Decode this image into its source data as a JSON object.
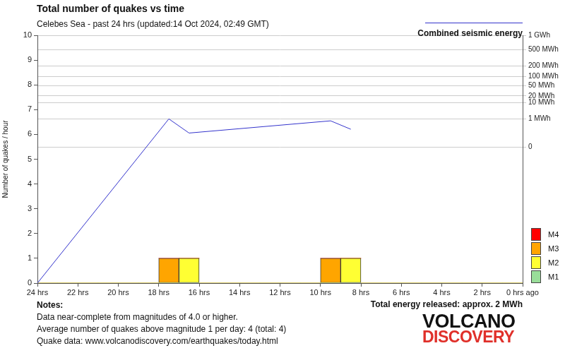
{
  "chart_data": {
    "type": "bar",
    "title": "Total number of quakes vs time",
    "subtitle": "Celebes Sea - past 24 hrs (updated:14 Oct 2024, 02:49 GMT)",
    "y_label": "Number of quakes / hour",
    "x": [
      23.5,
      22.5,
      21.5,
      20.5,
      19.5,
      18.5,
      17.5,
      16.5,
      15.5,
      14.5,
      13.5,
      12.5,
      11.5,
      10.5,
      9.5,
      8.5,
      7.5,
      6.5,
      5.5,
      4.5,
      3.5,
      2.5,
      1.5,
      0.5
    ],
    "series": [
      {
        "name": "M1",
        "color": "#99dd99",
        "type": "bar",
        "values": [
          0,
          0,
          0,
          0,
          0,
          0,
          0,
          0,
          0,
          0,
          0,
          0,
          0,
          0,
          0,
          0,
          0,
          0,
          0,
          0,
          0,
          0,
          0,
          0
        ]
      },
      {
        "name": "M2",
        "color": "#ffff33",
        "type": "bar",
        "values": [
          0,
          0,
          0,
          0,
          0,
          0,
          0,
          1,
          0,
          0,
          0,
          0,
          0,
          0,
          0,
          1,
          0,
          0,
          0,
          0,
          0,
          0,
          0,
          0
        ]
      },
      {
        "name": "M3",
        "color": "#ffa500",
        "type": "bar",
        "values": [
          0,
          0,
          0,
          0,
          0,
          0,
          1,
          0,
          0,
          0,
          0,
          0,
          0,
          0,
          1,
          0,
          0,
          0,
          0,
          0,
          0,
          0,
          0,
          0
        ]
      },
      {
        "name": "M4",
        "color": "#ff0000",
        "type": "bar",
        "values": [
          0,
          0,
          0,
          0,
          0,
          0,
          0,
          0,
          0,
          0,
          0,
          0,
          0,
          0,
          0,
          0,
          0,
          0,
          0,
          0,
          0,
          0,
          0,
          0
        ]
      },
      {
        "name": "Combined seismic energy",
        "color": "#3333cc",
        "type": "line",
        "axis": "y2",
        "x": [
          24,
          17.5,
          16.5,
          9.5,
          8.5
        ],
        "values": [
          -2700,
          1,
          0.03,
          0.7,
          0.1
        ]
      }
    ],
    "stacked": true,
    "xlim": [
      24,
      0
    ],
    "xticks": [
      {
        "value": 24,
        "label": "24 hrs"
      },
      {
        "value": 22,
        "label": "22 hrs"
      },
      {
        "value": 20,
        "label": "20 hrs"
      },
      {
        "value": 18,
        "label": "18 hrs"
      },
      {
        "value": 16,
        "label": "16 hrs"
      },
      {
        "value": 14,
        "label": "14 hrs"
      },
      {
        "value": 12,
        "label": "12 hrs"
      },
      {
        "value": 10,
        "label": "10 hrs"
      },
      {
        "value": 8,
        "label": "8 hrs"
      },
      {
        "value": 6,
        "label": "6 hrs"
      },
      {
        "value": 4,
        "label": "4 hrs"
      },
      {
        "value": 2,
        "label": "2 hrs"
      },
      {
        "value": 0,
        "label": "0 hrs ago"
      }
    ],
    "ylim": [
      0,
      10
    ],
    "yticks": [
      0,
      1,
      2,
      3,
      4,
      5,
      6,
      7,
      8,
      9,
      10
    ],
    "y2lim": [
      -2700,
      1000
    ],
    "y2ticks": [
      0,
      {
        "value": 1,
        "label": "1 MWh"
      },
      {
        "value": 10,
        "label": "10 MWh"
      },
      {
        "value": 20,
        "label": "20 MWh"
      },
      {
        "value": 50,
        "label": "50 MWh"
      },
      {
        "value": 100,
        "label": "100 MWh"
      },
      {
        "value": 200,
        "label": "200 MWh"
      },
      {
        "value": 500,
        "label": "500 MWh"
      },
      {
        "value": 1000,
        "label": "1 GWh"
      }
    ],
    "grid": true,
    "legend": "upper right",
    "annotations": [
      "Total energy released: approx. 2 MWh"
    ],
    "notes": [
      "Notes:",
      "Data near-complete from magnitudes of 4.0 or higher.",
      "Average number of quakes above magnitude 1 per day: 4 (total: 4)",
      "Quake data: www.volcanodiscovery.com/earthquakes/today.html"
    ],
    "logo": [
      "VOLCANO",
      "DISCOVERY"
    ]
  }
}
